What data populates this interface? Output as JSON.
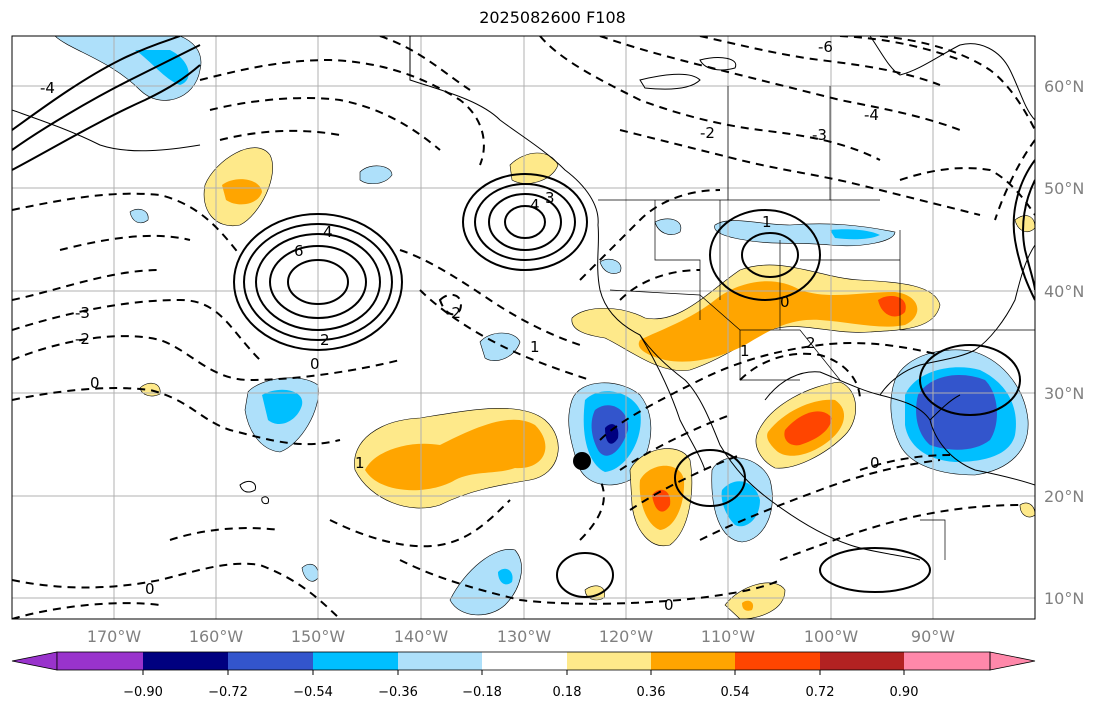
{
  "title": "2025082600 F108",
  "lat_labels": [
    "60°N",
    "50°N",
    "40°N",
    "30°N",
    "20°N",
    "10°N"
  ],
  "lon_labels": [
    "170°W",
    "160°W",
    "150°W",
    "140°W",
    "130°W",
    "120°W",
    "110°W",
    "100°W",
    "90°W"
  ],
  "colorbar": {
    "tick_labels": [
      "−0.90",
      "−0.72",
      "−0.54",
      "−0.36",
      "−0.18",
      "0.18",
      "0.36",
      "0.54",
      "0.72",
      "0.90"
    ],
    "colors": [
      "#9933cc",
      "#000080",
      "#3355cc",
      "#00bfff",
      "#aee0fa",
      "#ffffff",
      "#fee98a",
      "#ffa500",
      "#ff4500",
      "#b22222",
      "#ff88aa"
    ]
  },
  "contour_labels": [
    "6",
    "4",
    "3",
    "2",
    "1",
    "0",
    "-2",
    "-3",
    "-4",
    "-6"
  ]
}
